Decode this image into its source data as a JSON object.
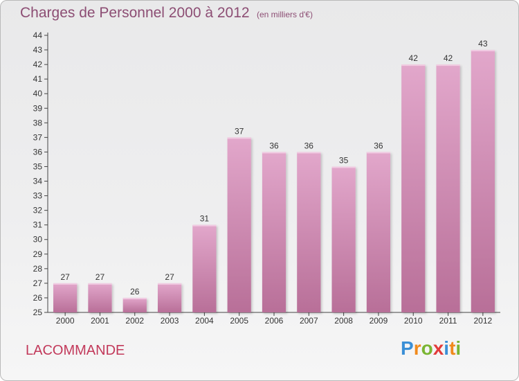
{
  "header": {
    "title": "Charges de Personnel 2000 à 2012",
    "subtitle": "(en milliers d'€)"
  },
  "footer": {
    "commune": "LACOMMANDE",
    "logo": [
      "P",
      "r",
      "o",
      "x",
      "i",
      "t",
      "i"
    ]
  },
  "colors": {
    "bar_top": "#e2a7cb",
    "bar_bottom": "#b86f98",
    "title": "#8c4d73",
    "commune": "#c2395a",
    "logo": [
      "#3a8fd6",
      "#f08a1c",
      "#7ab532",
      "#e23b3b",
      "#3a8fd6",
      "#f08a1c",
      "#7ab532"
    ]
  },
  "chart_data": {
    "type": "bar",
    "title": "Charges de Personnel 2000 à 2012",
    "subtitle": "(en milliers d'€)",
    "categories": [
      "2000",
      "2001",
      "2002",
      "2003",
      "2004",
      "2005",
      "2006",
      "2007",
      "2008",
      "2009",
      "2010",
      "2011",
      "2012"
    ],
    "values": [
      27,
      27,
      26,
      27,
      31,
      37,
      36,
      36,
      35,
      36,
      42,
      42,
      43
    ],
    "ylim": [
      25,
      44
    ],
    "yticks": [
      25,
      26,
      27,
      28,
      29,
      30,
      31,
      32,
      33,
      34,
      35,
      36,
      37,
      38,
      39,
      40,
      41,
      42,
      43,
      44
    ],
    "grid": false,
    "legend": "none"
  }
}
